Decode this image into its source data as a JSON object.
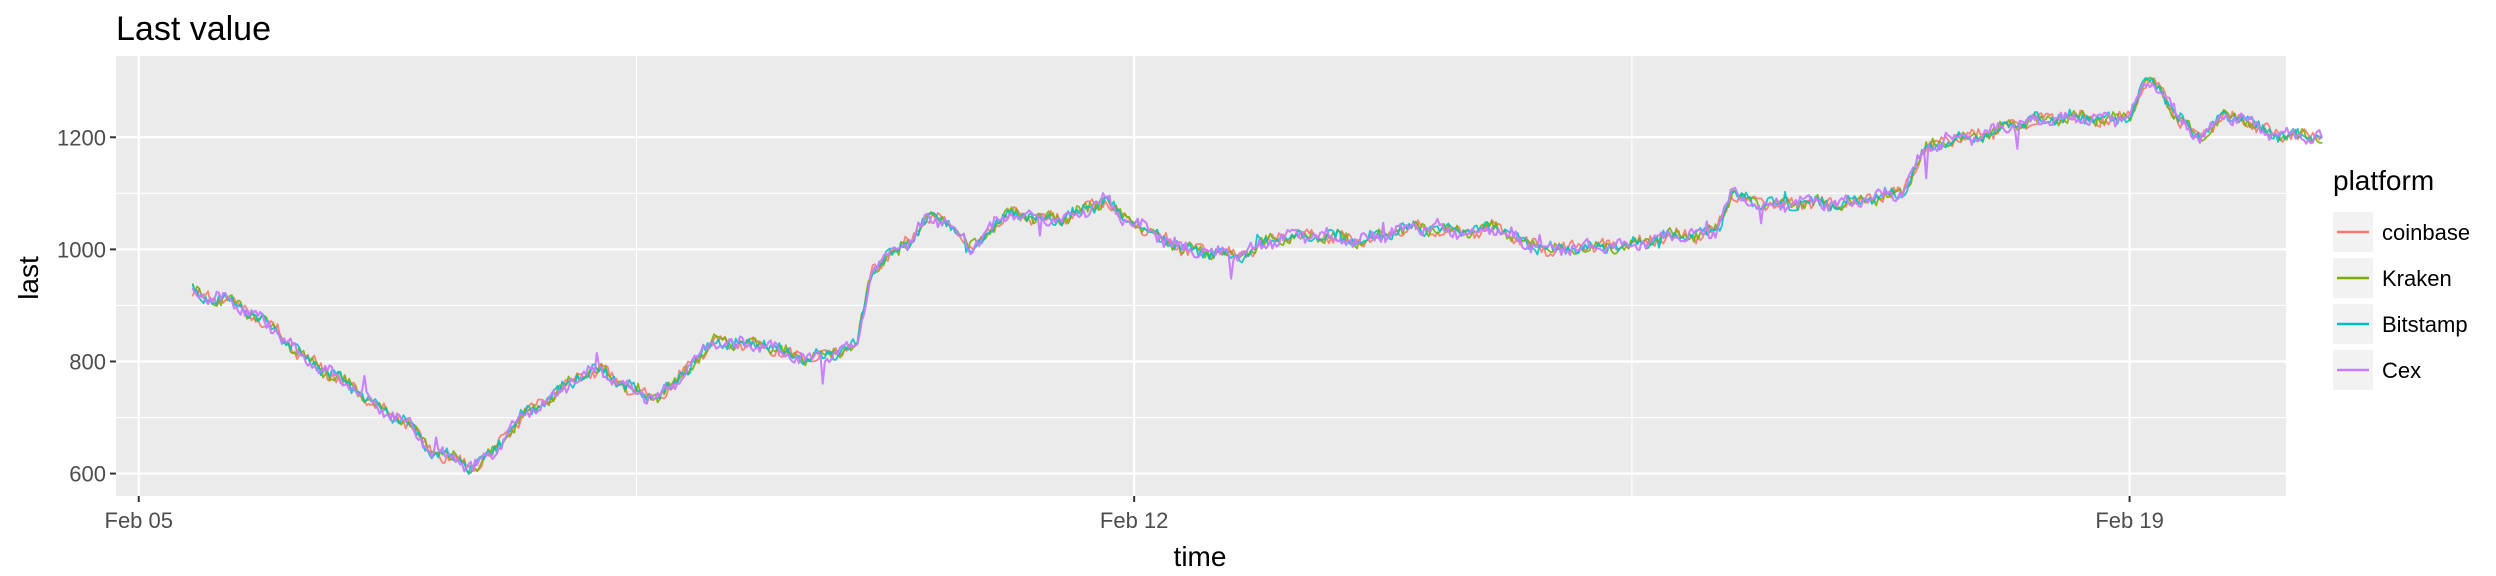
{
  "chart_data": {
    "type": "line",
    "title": "Last value",
    "xlabel": "time",
    "ylabel": "last",
    "x_ticks": [
      {
        "label": "Feb 05",
        "day": 5
      },
      {
        "label": "Feb 12",
        "day": 12
      },
      {
        "label": "Feb 19",
        "day": 19
      }
    ],
    "y_ticks": [
      600,
      800,
      1000,
      1200
    ],
    "xlim_day": [
      4.84,
      20.1
    ],
    "ylim": [
      560,
      1345
    ],
    "grid": true,
    "legend_title": "platform",
    "legend_position": "right",
    "series": [
      {
        "name": "coinbase",
        "color": "#F8766D"
      },
      {
        "name": "Kraken",
        "color": "#7CAE00"
      },
      {
        "name": "Bitstamp",
        "color": "#00BFC4"
      },
      {
        "name": "Cex",
        "color": "#C77CFF"
      }
    ],
    "base_curve": [
      [
        5.38,
        925
      ],
      [
        5.5,
        912
      ],
      [
        5.65,
        910
      ],
      [
        5.78,
        885
      ],
      [
        5.95,
        860
      ],
      [
        6.1,
        820
      ],
      [
        6.3,
        785
      ],
      [
        6.5,
        755
      ],
      [
        6.7,
        715
      ],
      [
        6.9,
        690
      ],
      [
        7.05,
        640
      ],
      [
        7.2,
        628
      ],
      [
        7.35,
        610
      ],
      [
        7.5,
        640
      ],
      [
        7.7,
        705
      ],
      [
        7.9,
        735
      ],
      [
        8.1,
        775
      ],
      [
        8.25,
        785
      ],
      [
        8.4,
        760
      ],
      [
        8.6,
        735
      ],
      [
        8.75,
        755
      ],
      [
        8.9,
        800
      ],
      [
        9.05,
        835
      ],
      [
        9.25,
        830
      ],
      [
        9.4,
        830
      ],
      [
        9.55,
        815
      ],
      [
        9.7,
        805
      ],
      [
        9.9,
        815
      ],
      [
        10.05,
        830
      ],
      [
        10.15,
        960
      ],
      [
        10.25,
        985
      ],
      [
        10.4,
        1010
      ],
      [
        10.55,
        1055
      ],
      [
        10.7,
        1050
      ],
      [
        10.85,
        1000
      ],
      [
        11.0,
        1040
      ],
      [
        11.15,
        1065
      ],
      [
        11.3,
        1055
      ],
      [
        11.5,
        1055
      ],
      [
        11.65,
        1070
      ],
      [
        11.8,
        1090
      ],
      [
        11.9,
        1060
      ],
      [
        12.05,
        1040
      ],
      [
        12.2,
        1020
      ],
      [
        12.35,
        1000
      ],
      [
        12.55,
        995
      ],
      [
        12.75,
        990
      ],
      [
        12.95,
        1015
      ],
      [
        13.15,
        1025
      ],
      [
        13.35,
        1025
      ],
      [
        13.55,
        1015
      ],
      [
        13.75,
        1025
      ],
      [
        13.95,
        1040
      ],
      [
        14.15,
        1035
      ],
      [
        14.35,
        1030
      ],
      [
        14.55,
        1040
      ],
      [
        14.75,
        1010
      ],
      [
        14.95,
        1000
      ],
      [
        15.15,
        1005
      ],
      [
        15.35,
        1005
      ],
      [
        15.55,
        1010
      ],
      [
        15.75,
        1025
      ],
      [
        15.95,
        1025
      ],
      [
        16.1,
        1035
      ],
      [
        16.2,
        1100
      ],
      [
        16.35,
        1085
      ],
      [
        16.55,
        1080
      ],
      [
        16.75,
        1085
      ],
      [
        16.95,
        1080
      ],
      [
        17.1,
        1085
      ],
      [
        17.25,
        1095
      ],
      [
        17.4,
        1100
      ],
      [
        17.55,
        1175
      ],
      [
        17.7,
        1195
      ],
      [
        17.9,
        1200
      ],
      [
        18.1,
        1215
      ],
      [
        18.3,
        1230
      ],
      [
        18.5,
        1235
      ],
      [
        18.7,
        1235
      ],
      [
        18.9,
        1230
      ],
      [
        19.0,
        1240
      ],
      [
        19.12,
        1300
      ],
      [
        19.22,
        1285
      ],
      [
        19.35,
        1230
      ],
      [
        19.5,
        1200
      ],
      [
        19.65,
        1235
      ],
      [
        19.8,
        1235
      ],
      [
        19.9,
        1215
      ],
      [
        20.05,
        1205
      ],
      [
        20.35,
        1200
      ]
    ]
  }
}
